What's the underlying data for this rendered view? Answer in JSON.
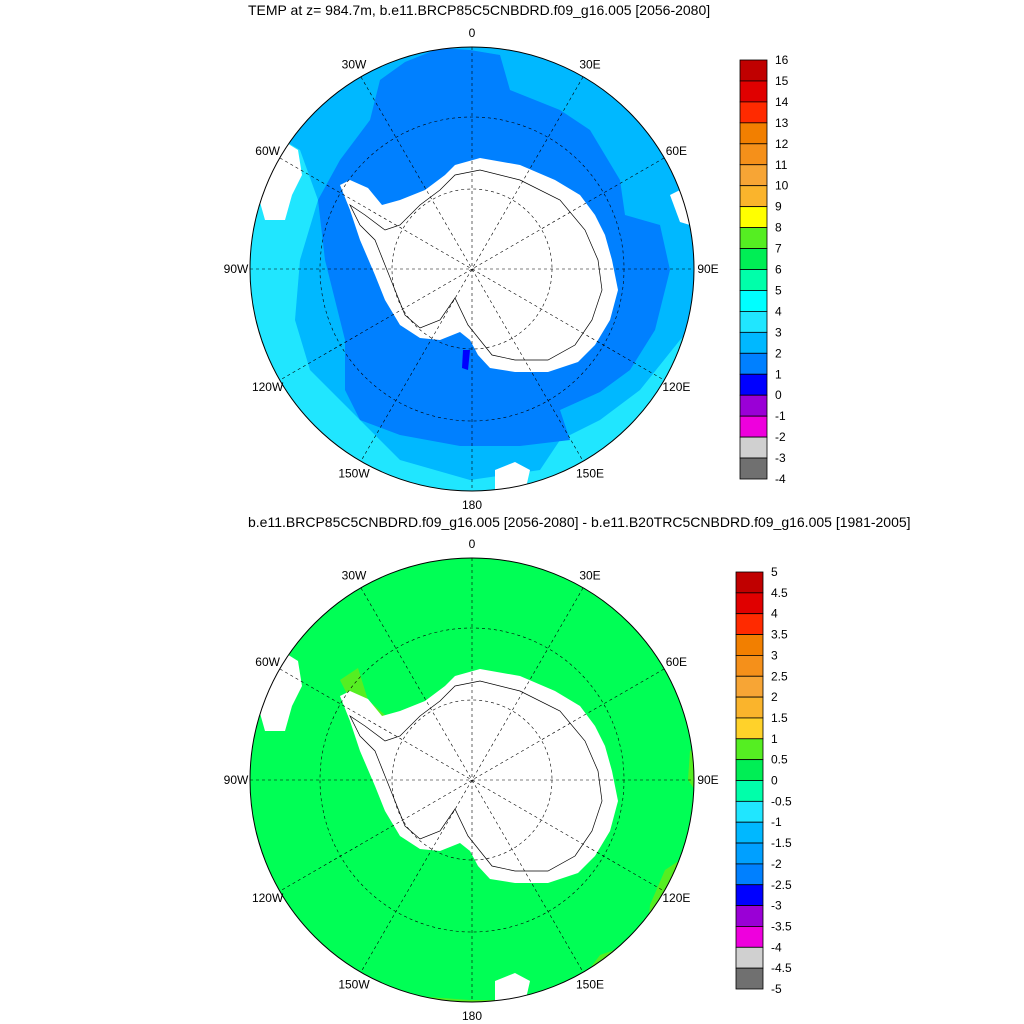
{
  "figure": {
    "panel1_title": "TEMP at z= 984.7m, b.e11.BRCP85C5CNBDRD.f09_g16.005 [2056-2080]",
    "panel2_title": "b.e11.BRCP85C5CNBDRD.f09_g16.005 [2056-2080] - b.e11.B20TRC5CNBDRD.f09_g16.005 [1981-2005]"
  },
  "chart_data": [
    {
      "type": "heatmap",
      "projection": "south-polar-stereographic",
      "title": "TEMP at z= 984.7m, b.e11.BRCP85C5CNBDRD.f09_g16.005 [2056-2080]",
      "longitude_labels": [
        "0",
        "30E",
        "60E",
        "90E",
        "120E",
        "150E",
        "180",
        "150W",
        "120W",
        "90W",
        "60W",
        "30W"
      ],
      "colorbar": {
        "levels": [
          16,
          15,
          14,
          13,
          12,
          11,
          10,
          9,
          8,
          7,
          6,
          5,
          4,
          3,
          2,
          1,
          0,
          -1,
          -2,
          -3,
          -4
        ],
        "labels": [
          "16",
          "15",
          "14",
          "13",
          "12",
          "11",
          "10",
          "9",
          "8",
          "7",
          "6",
          "5",
          "4",
          "3",
          "2",
          "1",
          "0",
          "-1",
          "-2",
          "-3",
          "-4"
        ],
        "colors": [
          "#c00000",
          "#e00000",
          "#ff2a00",
          "#f27f00",
          "#f5901a",
          "#f7a535",
          "#fab42c",
          "#ffff00",
          "#55ee22",
          "#00ee55",
          "#00ffaa",
          "#00ffff",
          "#20e6ff",
          "#00b8ff",
          "#0080ff",
          "#0000ff",
          "#9a00d6",
          "#ee00dd",
          "#d0d0d0",
          "#707070"
        ]
      },
      "field_colors": {
        "ocean_2_3": "#0080ff",
        "ocean_3_4": "#00b8ff",
        "ocean_4_5": "#20e6ff",
        "ocean_0_1": "#0000ff",
        "land": "#ffffff"
      }
    },
    {
      "type": "heatmap",
      "projection": "south-polar-stereographic",
      "title": "b.e11.BRCP85C5CNBDRD.f09_g16.005 [2056-2080] - b.e11.B20TRC5CNBDRD.f09_g16.005 [1981-2005]",
      "longitude_labels": [
        "0",
        "30E",
        "60E",
        "90E",
        "120E",
        "150E",
        "180",
        "150W",
        "120W",
        "90W",
        "60W",
        "30W"
      ],
      "colorbar": {
        "levels": [
          5,
          4.5,
          4,
          3.5,
          3,
          2.5,
          2,
          1.5,
          1,
          0.5,
          0,
          -0.5,
          -1,
          -1.5,
          -2,
          -2.5,
          -3,
          -3.5,
          -4,
          -4.5,
          -5
        ],
        "labels": [
          "5",
          "4.5",
          "4",
          "3.5",
          "3",
          "2.5",
          "2",
          "1.5",
          "1",
          "0.5",
          "0",
          "-0.5",
          "-1",
          "-1.5",
          "-2",
          "-2.5",
          "-3",
          "-3.5",
          "-4",
          "-4.5",
          "-5"
        ],
        "colors": [
          "#c00000",
          "#e00000",
          "#ff2a00",
          "#f27f00",
          "#f5901a",
          "#f7a535",
          "#fab42c",
          "#ffd22a",
          "#55ee22",
          "#00ee55",
          "#00ffaa",
          "#20e6ff",
          "#00b8ff",
          "#00a0ff",
          "#0080ff",
          "#0000ff",
          "#9a00d6",
          "#ee00dd",
          "#d0d0d0",
          "#707070"
        ]
      },
      "field_colors": {
        "ocean_0_05": "#00ff55",
        "ocean_05_1": "#55ee22",
        "land": "#ffffff"
      }
    }
  ]
}
